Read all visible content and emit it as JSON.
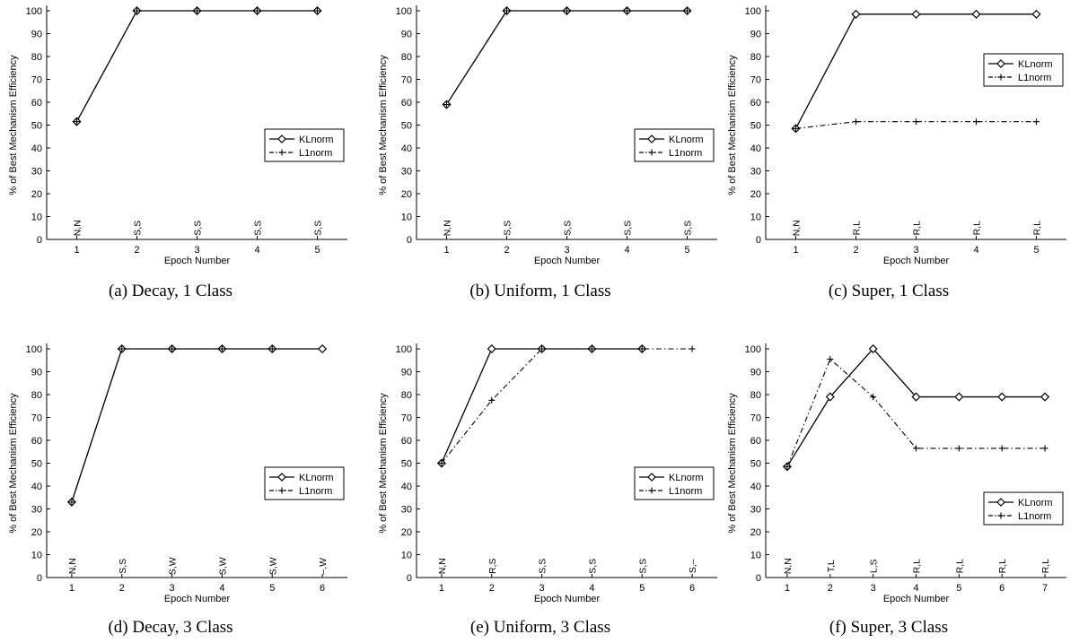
{
  "chart_data": [
    {
      "type": "line",
      "caption": "(a)  Decay, 1 Class",
      "xlabel": "Epoch Number",
      "ylabel": "% of Best Mechanism Efficiency",
      "xlim": [
        0.5,
        5.5
      ],
      "ylim": [
        0,
        100
      ],
      "x_ticks": [
        1,
        2,
        3,
        4,
        5
      ],
      "y_ticks": [
        0,
        10,
        20,
        30,
        40,
        50,
        60,
        70,
        80,
        90,
        100
      ],
      "legend_position": "middle-right",
      "series": [
        {
          "name": "KLnorm",
          "x": [
            1,
            2,
            3,
            4,
            5
          ],
          "values": [
            51.5,
            100,
            100,
            100,
            100
          ]
        },
        {
          "name": "L1norm",
          "x": [
            1,
            2,
            3,
            4,
            5
          ],
          "values": [
            51.5,
            100,
            100,
            100,
            100
          ]
        }
      ],
      "point_labels": [
        "N,N",
        "S,S",
        "S,S",
        "S,S",
        "S,S"
      ]
    },
    {
      "type": "line",
      "caption": "(b)  Uniform, 1 Class",
      "xlabel": "Epoch Number",
      "ylabel": "% of Best Mechanism Efficiency",
      "xlim": [
        0.5,
        5.5
      ],
      "ylim": [
        0,
        100
      ],
      "x_ticks": [
        1,
        2,
        3,
        4,
        5
      ],
      "y_ticks": [
        0,
        10,
        20,
        30,
        40,
        50,
        60,
        70,
        80,
        90,
        100
      ],
      "legend_position": "middle-right",
      "series": [
        {
          "name": "KLnorm",
          "x": [
            1,
            2,
            3,
            4,
            5
          ],
          "values": [
            59,
            100,
            100,
            100,
            100
          ]
        },
        {
          "name": "L1norm",
          "x": [
            1,
            2,
            3,
            4,
            5
          ],
          "values": [
            59,
            100,
            100,
            100,
            100
          ]
        }
      ],
      "point_labels": [
        "N,N",
        "S,S",
        "S,S",
        "S,S",
        "S,S"
      ]
    },
    {
      "type": "line",
      "caption": "(c)  Super, 1 Class",
      "xlabel": "Epoch Number",
      "ylabel": "% of Best Mechanism Efficiency",
      "xlim": [
        0.5,
        5.5
      ],
      "ylim": [
        0,
        100
      ],
      "x_ticks": [
        1,
        2,
        3,
        4,
        5
      ],
      "y_ticks": [
        0,
        10,
        20,
        30,
        40,
        50,
        60,
        70,
        80,
        90,
        100
      ],
      "legend_position": "upper-right",
      "series": [
        {
          "name": "KLnorm",
          "x": [
            1,
            2,
            3,
            4,
            5
          ],
          "values": [
            48.5,
            98.5,
            98.5,
            98.5,
            98.5
          ]
        },
        {
          "name": "L1norm",
          "x": [
            1,
            2,
            3,
            4,
            5
          ],
          "values": [
            48.5,
            51.5,
            51.5,
            51.5,
            51.5
          ]
        }
      ],
      "point_labels": [
        "N,N",
        "R,L",
        "R,L",
        "R,L",
        "R,L"
      ]
    },
    {
      "type": "line",
      "caption": "(d)  Decay, 3 Class",
      "xlabel": "Epoch Number",
      "ylabel": "% of Best Mechanism Efficiency",
      "xlim": [
        0.5,
        6.5
      ],
      "ylim": [
        0,
        100
      ],
      "x_ticks": [
        1,
        2,
        3,
        4,
        5,
        6
      ],
      "y_ticks": [
        0,
        10,
        20,
        30,
        40,
        50,
        60,
        70,
        80,
        90,
        100
      ],
      "legend_position": "middle-right",
      "series": [
        {
          "name": "KLnorm",
          "x": [
            1,
            2,
            3,
            4,
            5,
            6
          ],
          "values": [
            33,
            100,
            100,
            100,
            100,
            100
          ]
        },
        {
          "name": "L1norm",
          "x": [
            1,
            2,
            3,
            4,
            5
          ],
          "values": [
            33,
            100,
            100,
            100,
            100
          ]
        }
      ],
      "point_labels": [
        "N,N",
        "S,S",
        "S,W",
        "S,W",
        "S,W",
        "–,W"
      ]
    },
    {
      "type": "line",
      "caption": "(e)  Uniform, 3 Class",
      "xlabel": "Epoch Number",
      "ylabel": "% of Best Mechanism Efficiency",
      "xlim": [
        0.5,
        6.5
      ],
      "ylim": [
        0,
        100
      ],
      "x_ticks": [
        1,
        2,
        3,
        4,
        5,
        6
      ],
      "y_ticks": [
        0,
        10,
        20,
        30,
        40,
        50,
        60,
        70,
        80,
        90,
        100
      ],
      "legend_position": "middle-right",
      "series": [
        {
          "name": "KLnorm",
          "x": [
            1,
            2,
            3,
            4,
            5
          ],
          "values": [
            50,
            100,
            100,
            100,
            100
          ]
        },
        {
          "name": "L1norm",
          "x": [
            1,
            2,
            3,
            4,
            5,
            6
          ],
          "values": [
            50,
            77.5,
            100,
            100,
            100,
            100
          ]
        }
      ],
      "point_labels": [
        "N,N",
        "R,S",
        "S,S",
        "S,S",
        "S,S",
        "S,–"
      ]
    },
    {
      "type": "line",
      "caption": "(f)  Super, 3 Class",
      "xlabel": "Epoch Number",
      "ylabel": "% of Best Mechanism Efficiency",
      "xlim": [
        0.5,
        7.5
      ],
      "ylim": [
        0,
        100
      ],
      "x_ticks": [
        1,
        2,
        3,
        4,
        5,
        6,
        7
      ],
      "y_ticks": [
        0,
        10,
        20,
        30,
        40,
        50,
        60,
        70,
        80,
        90,
        100
      ],
      "legend_position": "lower-right",
      "series": [
        {
          "name": "KLnorm",
          "x": [
            1,
            2,
            3,
            4,
            5,
            6,
            7
          ],
          "values": [
            48.5,
            79,
            100,
            79,
            79,
            79,
            79
          ]
        },
        {
          "name": "L1norm",
          "x": [
            1,
            2,
            3,
            4,
            5,
            6,
            7
          ],
          "values": [
            48.5,
            95.5,
            79,
            56.5,
            56.5,
            56.5,
            56.5
          ]
        }
      ],
      "point_labels": [
        "N,N",
        "T,L",
        "L,S",
        "R,L",
        "R,L",
        "R,L",
        "R,L"
      ]
    }
  ]
}
